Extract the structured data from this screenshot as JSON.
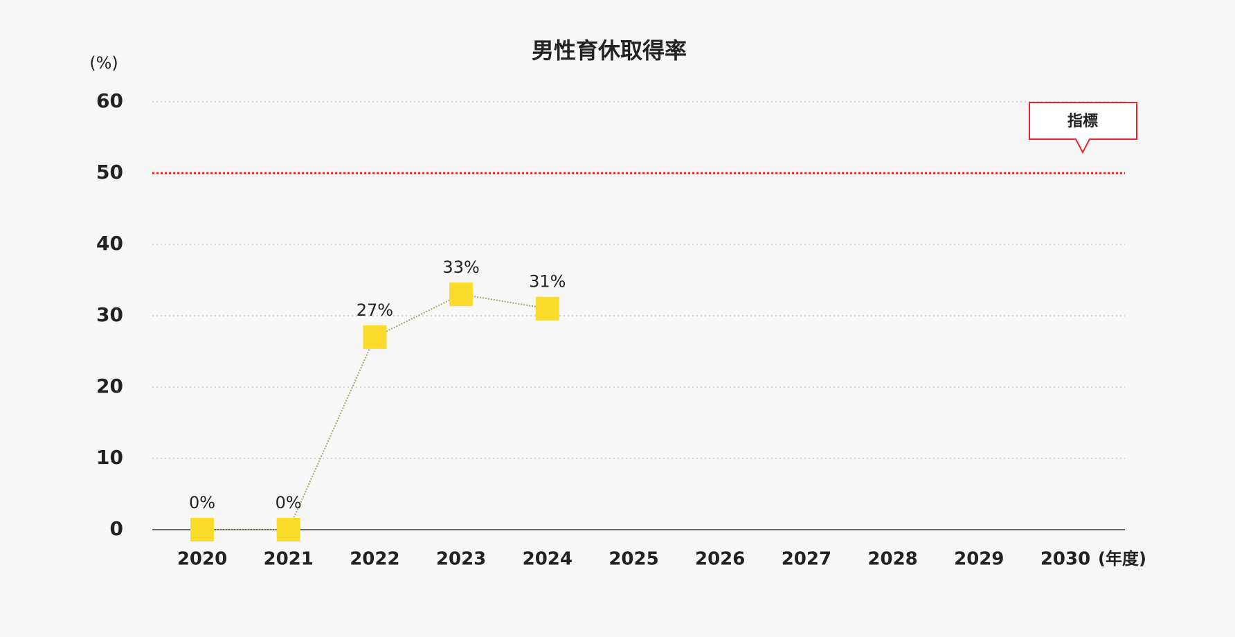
{
  "chart_data": {
    "type": "line",
    "title": "男性育休取得率",
    "y_label": "(%)",
    "x_label": "(年度)",
    "categories": [
      "2020",
      "2021",
      "2022",
      "2023",
      "2024",
      "2025",
      "2026",
      "2027",
      "2028",
      "2029",
      "2030"
    ],
    "series": [
      {
        "name": "男性育休取得率",
        "color": "#fbdc2c",
        "line_color": "#a9a36b",
        "values": [
          0,
          0,
          27,
          33,
          31,
          null,
          null,
          null,
          null,
          null,
          null
        ],
        "value_labels": [
          "0%",
          "0%",
          "27%",
          "33%",
          "31%",
          null,
          null,
          null,
          null,
          null,
          null
        ]
      }
    ],
    "ylim": [
      0,
      60
    ],
    "yticks": [
      0,
      10,
      20,
      30,
      40,
      50,
      60
    ],
    "grid": true,
    "target": {
      "value": 50,
      "label": "指標",
      "color": "#e8252a"
    }
  }
}
